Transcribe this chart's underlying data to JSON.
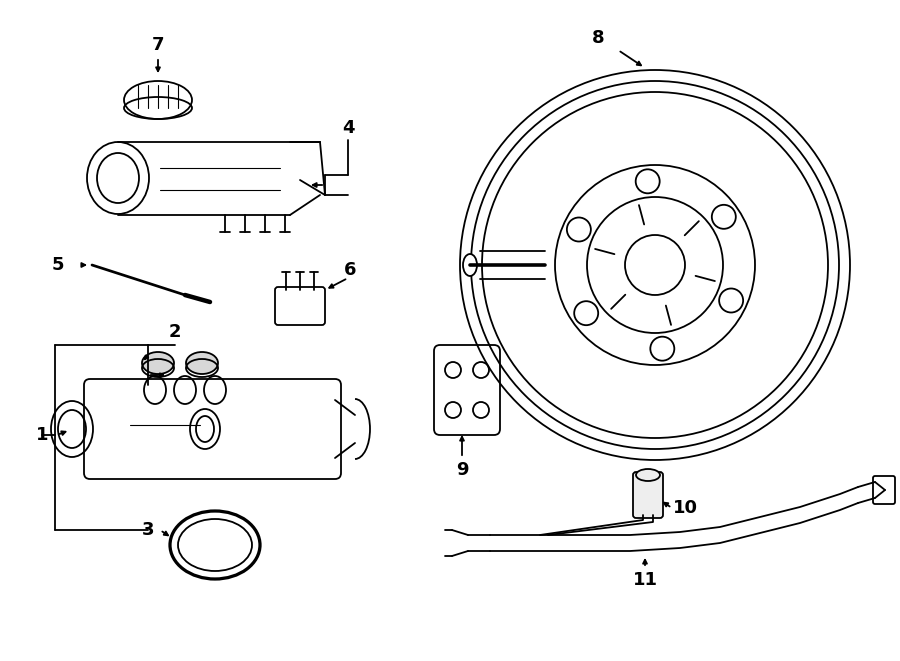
{
  "bg_color": "#ffffff",
  "lc": "#000000",
  "lw": 1.3,
  "figsize": [
    9.0,
    6.61
  ],
  "dpi": 100
}
